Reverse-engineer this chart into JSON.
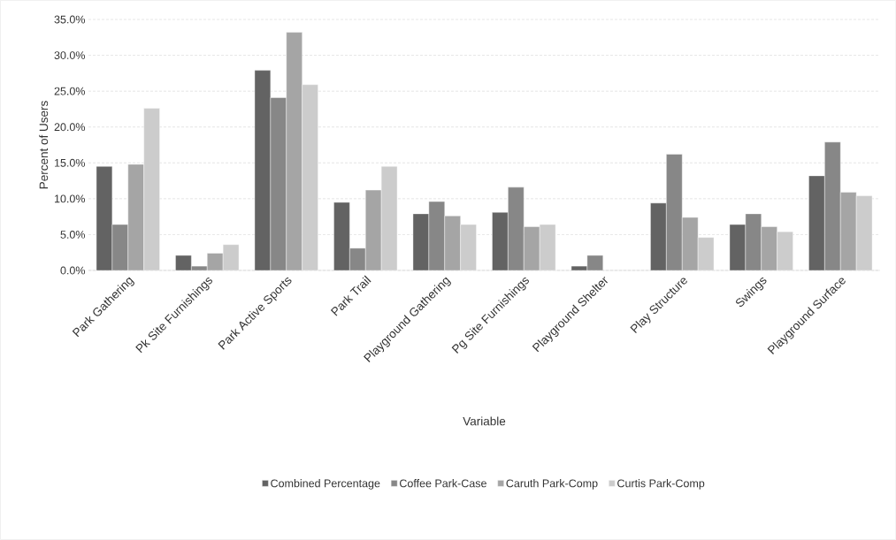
{
  "chart_data": {
    "type": "bar",
    "xlabel": "Variable",
    "ylabel": "Percent of Users",
    "categories": [
      "Park Gathering",
      "Pk Site Furnishings",
      "Park Active Sports",
      "Park Trail",
      "Playground Gathering",
      "Pg Site Furnishings",
      "Playground Shelter",
      "Play Structure",
      "Swings",
      "Playground Surface"
    ],
    "series": [
      {
        "name": "Combined Percentage",
        "color": "#636363",
        "values": [
          14.5,
          2.1,
          27.9,
          9.5,
          7.9,
          8.1,
          0.6,
          9.4,
          6.4,
          13.2
        ]
      },
      {
        "name": "Coffee Park-Case",
        "color": "#878787",
        "values": [
          6.4,
          0.6,
          24.1,
          3.1,
          9.6,
          11.6,
          2.1,
          16.2,
          7.9,
          17.9
        ]
      },
      {
        "name": "Caruth Park-Comp",
        "color": "#a5a5a5",
        "values": [
          14.8,
          2.4,
          33.2,
          11.2,
          7.6,
          6.1,
          null,
          7.4,
          6.1,
          10.9
        ]
      },
      {
        "name": "Curtis Park-Comp",
        "color": "#cccccc",
        "values": [
          22.6,
          3.6,
          25.9,
          14.5,
          6.4,
          6.4,
          null,
          4.6,
          5.4,
          10.4
        ]
      }
    ],
    "ylim": [
      0,
      35
    ],
    "yticks": [
      {
        "value": 0,
        "label": "0.0%"
      },
      {
        "value": 5,
        "label": "5.0%"
      },
      {
        "value": 10,
        "label": "10.0%"
      },
      {
        "value": 15,
        "label": "15.0%"
      },
      {
        "value": 20,
        "label": "20.0%"
      },
      {
        "value": 25,
        "label": "25.0%"
      },
      {
        "value": 30,
        "label": "30.0%"
      },
      {
        "value": 35,
        "label": "35.0%"
      }
    ],
    "grid": "y",
    "legend": "bottom"
  }
}
